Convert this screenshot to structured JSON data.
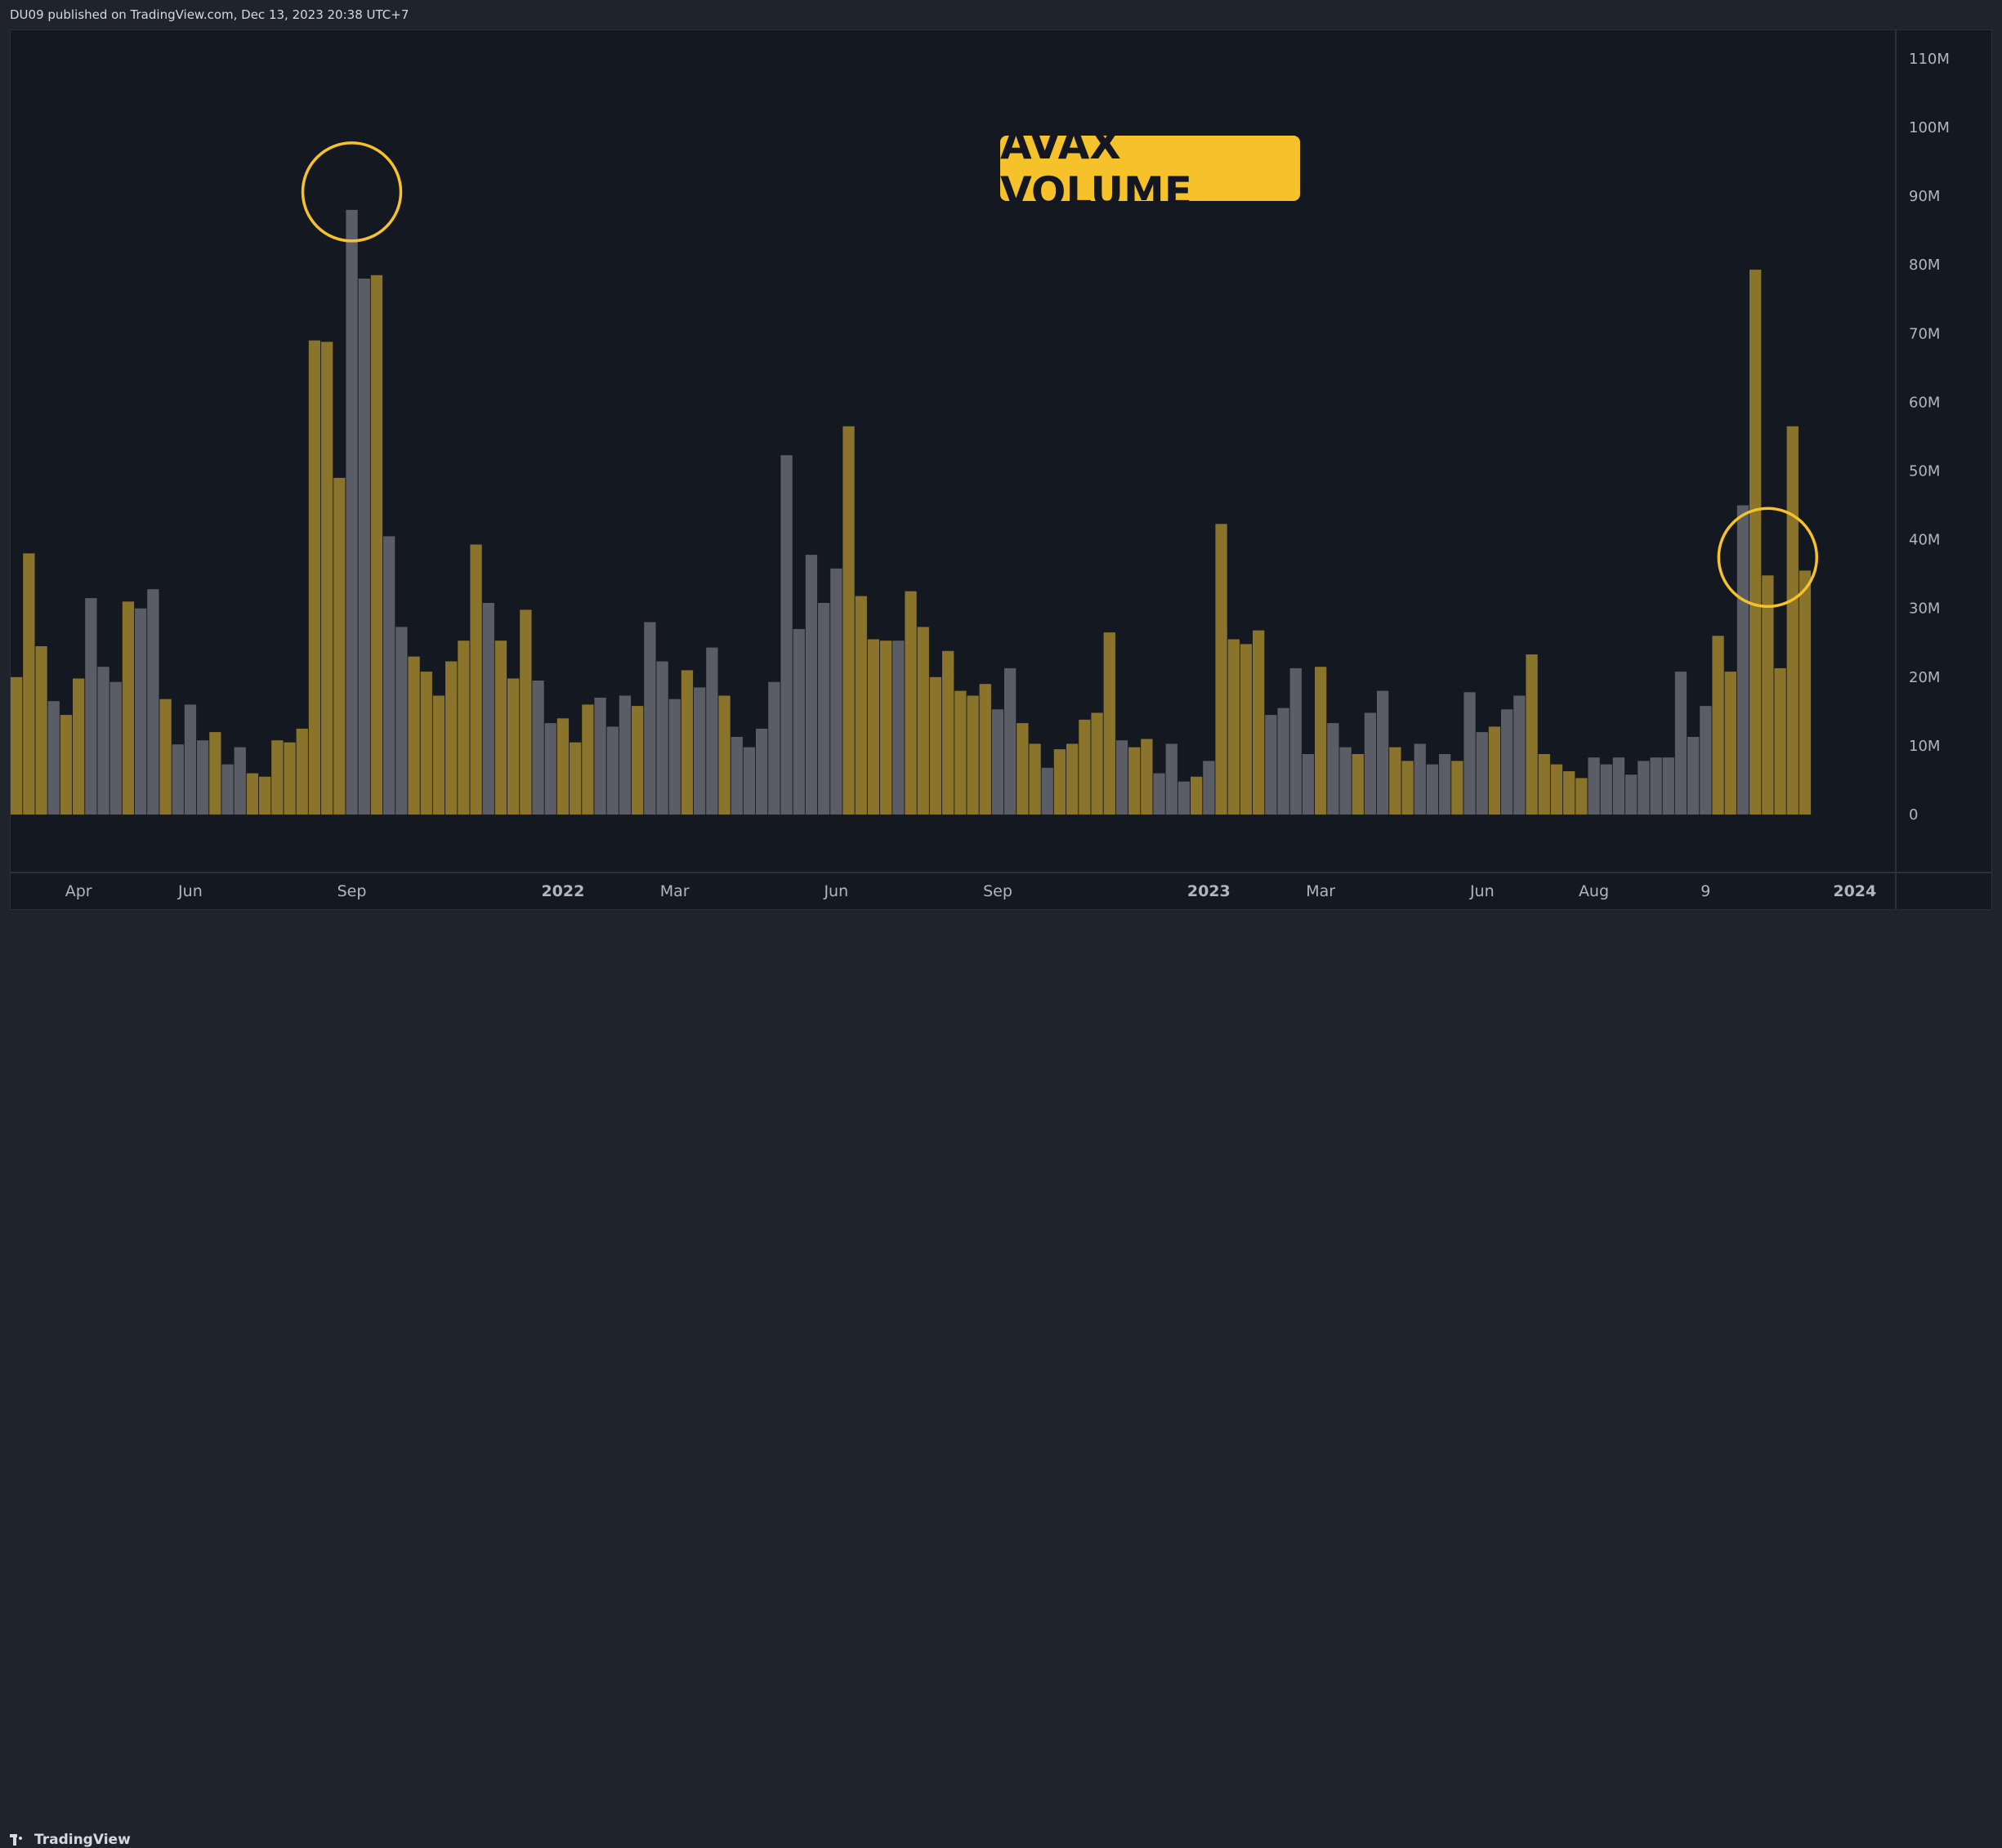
{
  "header": {
    "attribution": "DU09 published on TradingView.com, Dec 13, 2023 20:38 UTC+7"
  },
  "footer": {
    "brand": "TradingView"
  },
  "colors": {
    "up": "#8a742b",
    "down": "#5a5c66",
    "background": "#141820",
    "highlight": "#f6c22b",
    "axis_text": "#b2b5be"
  },
  "chart_data": {
    "type": "bar",
    "title": "AVAX VOLUME",
    "unit": "M",
    "ylim": [
      0,
      112
    ],
    "y_ticks": [
      {
        "v": 0,
        "label": "0"
      },
      {
        "v": 10,
        "label": "10M"
      },
      {
        "v": 20,
        "label": "20M"
      },
      {
        "v": 30,
        "label": "30M"
      },
      {
        "v": 40,
        "label": "40M"
      },
      {
        "v": 50,
        "label": "50M"
      },
      {
        "v": 60,
        "label": "60M"
      },
      {
        "v": 70,
        "label": "70M"
      },
      {
        "v": 80,
        "label": "80M"
      },
      {
        "v": 90,
        "label": "90M"
      },
      {
        "v": 100,
        "label": "100M"
      },
      {
        "v": 110,
        "label": "110M"
      }
    ],
    "x_ticks": [
      {
        "i": 5,
        "label": "Apr",
        "bold": false
      },
      {
        "i": 14,
        "label": "Jun",
        "bold": false
      },
      {
        "i": 27,
        "label": "Sep",
        "bold": false
      },
      {
        "i": 44,
        "label": "2022",
        "bold": true
      },
      {
        "i": 53,
        "label": "Mar",
        "bold": false
      },
      {
        "i": 66,
        "label": "Jun",
        "bold": false
      },
      {
        "i": 79,
        "label": "Sep",
        "bold": false
      },
      {
        "i": 96,
        "label": "2023",
        "bold": true
      },
      {
        "i": 105,
        "label": "Mar",
        "bold": false
      },
      {
        "i": 118,
        "label": "Jun",
        "bold": false
      },
      {
        "i": 127,
        "label": "Aug",
        "bold": false
      },
      {
        "i": 136,
        "label": "9",
        "bold": false
      },
      {
        "i": 148,
        "label": "2024",
        "bold": true
      }
    ],
    "values": [
      20,
      38,
      24.5,
      16.5,
      14.5,
      19.8,
      31.5,
      21.5,
      19.3,
      31,
      30,
      32.8,
      16.8,
      10.2,
      16,
      10.8,
      12,
      7.3,
      9.8,
      6,
      5.5,
      10.8,
      10.5,
      12.5,
      69,
      68.8,
      49,
      88,
      78,
      78.5,
      40.5,
      27.3,
      23,
      20.8,
      17.3,
      22.3,
      25.3,
      39.3,
      30.8,
      25.3,
      19.8,
      29.8,
      19.5,
      13.3,
      14,
      10.5,
      16,
      17,
      12.8,
      17.3,
      15.8,
      28,
      22.3,
      16.8,
      21,
      18.5,
      24.3,
      17.3,
      11.3,
      9.8,
      12.5,
      19.3,
      52.3,
      27,
      37.8,
      30.8,
      35.8,
      56.5,
      31.8,
      25.5,
      25.3,
      25.3,
      32.5,
      27.3,
      20,
      23.8,
      18,
      17.3,
      19,
      15.3,
      21.3,
      13.3,
      10.3,
      6.8,
      9.5,
      10.3,
      13.8,
      14.8,
      26.5,
      10.8,
      9.8,
      11,
      6,
      10.3,
      4.8,
      5.5,
      7.8,
      42.3,
      25.5,
      24.8,
      26.8,
      14.5,
      15.5,
      21.3,
      8.8,
      21.5,
      13.3,
      9.8,
      8.8,
      14.8,
      18,
      9.8,
      7.8,
      10.3,
      7.3,
      8.8,
      7.8,
      17.8,
      12,
      12.8,
      15.3,
      17.3,
      23.3,
      8.8,
      7.3,
      6.3,
      5.3,
      8.3,
      7.3,
      8.3,
      5.8,
      7.8,
      8.3,
      8.3,
      20.8,
      11.3,
      15.8,
      26,
      20.8,
      45,
      79.3,
      34.8,
      21.3,
      56.5,
      35.5
    ],
    "directions": "uuuduuddduddudddudduuuuuuuuddudduuuuuuduuudduuudddudddudduddddddddduuuuduuuuuuudduuduuuuuduuddduduuuudddduddudduuddduddudduuuuudddddddddduuduuuuuduuu",
    "circles_at": [
      27,
      141
    ]
  }
}
